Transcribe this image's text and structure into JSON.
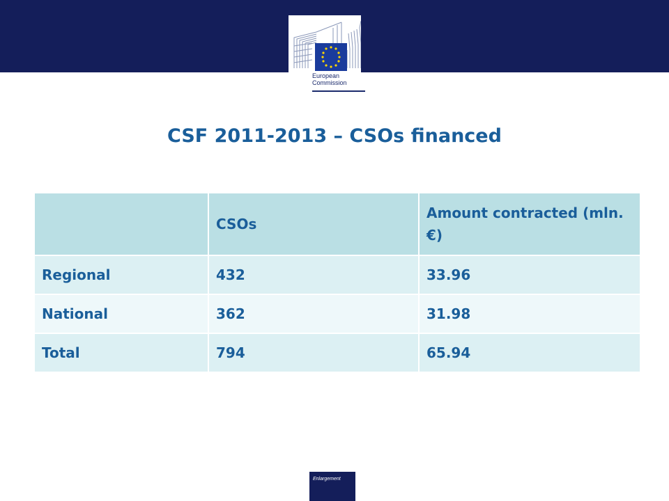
{
  "header": {
    "logo": {
      "line1": "European",
      "line2": "Commission",
      "flag_color": "#1a3b9c",
      "star_color": "#ffd700"
    }
  },
  "slide": {
    "title": "CSF 2011-2013 – CSOs financed"
  },
  "table": {
    "columns": [
      "",
      "CSOs",
      "Amount contracted (mln. €)"
    ],
    "rows": [
      [
        "Regional",
        "432",
        "33.96"
      ],
      [
        "National",
        "362",
        "31.98"
      ],
      [
        "Total",
        "794",
        "65.94"
      ]
    ]
  },
  "footer": {
    "label": "Enlargement"
  },
  "colors": {
    "band": "#141e5a",
    "title_text": "#1a5e9a",
    "header_row": "#badfe4",
    "row_odd": "#dcf0f3",
    "row_even": "#eef8fa"
  }
}
